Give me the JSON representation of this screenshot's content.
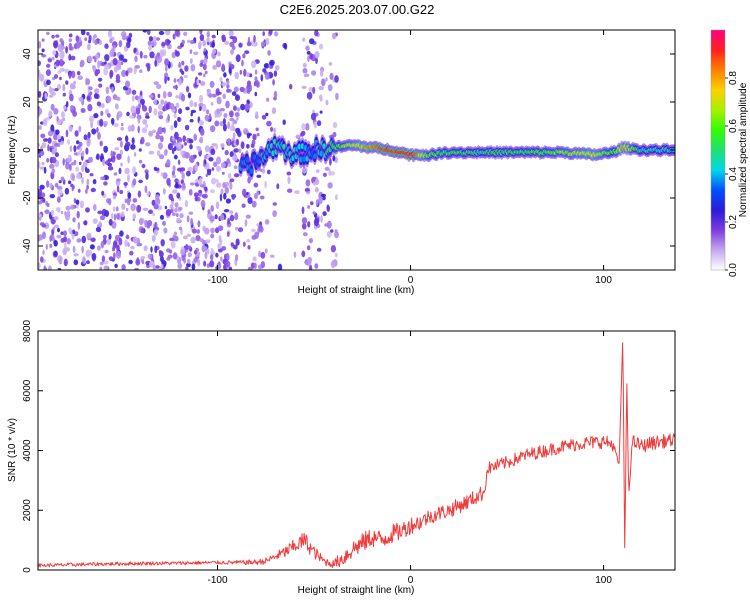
{
  "title": "C2E6.2025.203.07.00.G22",
  "chart_data": [
    {
      "type": "heatmap",
      "xlabel": "Height of straight line (km)",
      "ylabel": "Frequency (Hz)",
      "xlim": [
        -193,
        137
      ],
      "ylim": [
        -50,
        50
      ],
      "xticks": [
        -100,
        0,
        100
      ],
      "yticks": [
        -40,
        -20,
        0,
        20,
        40
      ],
      "colorbar": {
        "label": "Normalized spectral amplitude",
        "range": [
          0,
          1
        ],
        "ticks": [
          0.0,
          0.2,
          0.4,
          0.6,
          0.8
        ],
        "colormap": [
          "#ffffff",
          "#c4a8f0",
          "#7a3ce0",
          "#2a1ad8",
          "#0050ff",
          "#00d8e8",
          "#20e070",
          "#30ff00",
          "#a8f000",
          "#ffd000",
          "#ff8000",
          "#ff2020",
          "#ff0080"
        ]
      },
      "ridge": {
        "x": [
          -88,
          -80,
          -70,
          -60,
          -50,
          -40,
          -30,
          -20,
          -10,
          0,
          10,
          20,
          40,
          60,
          80,
          95,
          105,
          110,
          120,
          137
        ],
        "frequency": [
          -8,
          -5,
          2,
          -2,
          0,
          1,
          2,
          1,
          0,
          -2,
          -2,
          -1,
          -1,
          -1,
          -1,
          -2,
          -1,
          1,
          0,
          0
        ],
        "amplitude": [
          0.38,
          0.32,
          0.45,
          0.42,
          0.35,
          0.55,
          0.7,
          0.85,
          0.9,
          0.95,
          0.6,
          0.55,
          0.5,
          0.55,
          0.65,
          0.75,
          0.55,
          0.8,
          0.45,
          0.45
        ]
      },
      "noise_bands": [
        {
          "x_from": -193,
          "x_to": -88,
          "density": 0.55
        },
        {
          "x_from": -88,
          "x_to": -70,
          "density": 0.35
        },
        {
          "x_from": -70,
          "x_to": -56,
          "density": 0.06
        },
        {
          "x_from": -56,
          "x_to": -38,
          "density": 0.35
        }
      ]
    },
    {
      "type": "line",
      "xlabel": "Height of straight line (km)",
      "ylabel": "SNR (10 * v/v)",
      "xlim": [
        -193,
        137
      ],
      "ylim": [
        0,
        8000
      ],
      "xticks": [
        -100,
        0,
        100
      ],
      "yticks": [
        0,
        2000,
        4000,
        6000,
        8000
      ],
      "color": "#f03c3c",
      "series": [
        {
          "x": [
            -193,
            -180,
            -160,
            -140,
            -120,
            -100,
            -90,
            -80,
            -75,
            -70,
            -65,
            -60,
            -55,
            -50,
            -45,
            -40,
            -35,
            -30,
            -25,
            -20,
            -15,
            -10,
            -5,
            0,
            5,
            10,
            20,
            30,
            38,
            40,
            45,
            50,
            60,
            70,
            80,
            90,
            100,
            105,
            108,
            110,
            111,
            112,
            113,
            115,
            120,
            125,
            130,
            137
          ],
          "values": [
            150,
            170,
            200,
            220,
            230,
            250,
            250,
            260,
            300,
            450,
            600,
            800,
            1000,
            600,
            300,
            200,
            400,
            700,
            900,
            1100,
            1000,
            1200,
            1300,
            1500,
            1600,
            1800,
            2000,
            2300,
            2600,
            3400,
            3500,
            3600,
            3850,
            4000,
            4150,
            4250,
            4300,
            4200,
            3500,
            7900,
            500,
            6500,
            2500,
            4300,
            4150,
            4250,
            4300,
            4350
          ],
          "noise_amplitude": [
            60,
            60,
            60,
            60,
            60,
            60,
            70,
            90,
            110,
            140,
            200,
            250,
            300,
            220,
            150,
            130,
            300,
            320,
            330,
            330,
            330,
            330,
            300,
            300,
            280,
            260,
            260,
            260,
            260,
            220,
            220,
            220,
            220,
            220,
            220,
            230,
            230,
            230,
            0,
            0,
            0,
            0,
            0,
            230,
            230,
            230,
            230,
            230
          ]
        }
      ]
    }
  ]
}
